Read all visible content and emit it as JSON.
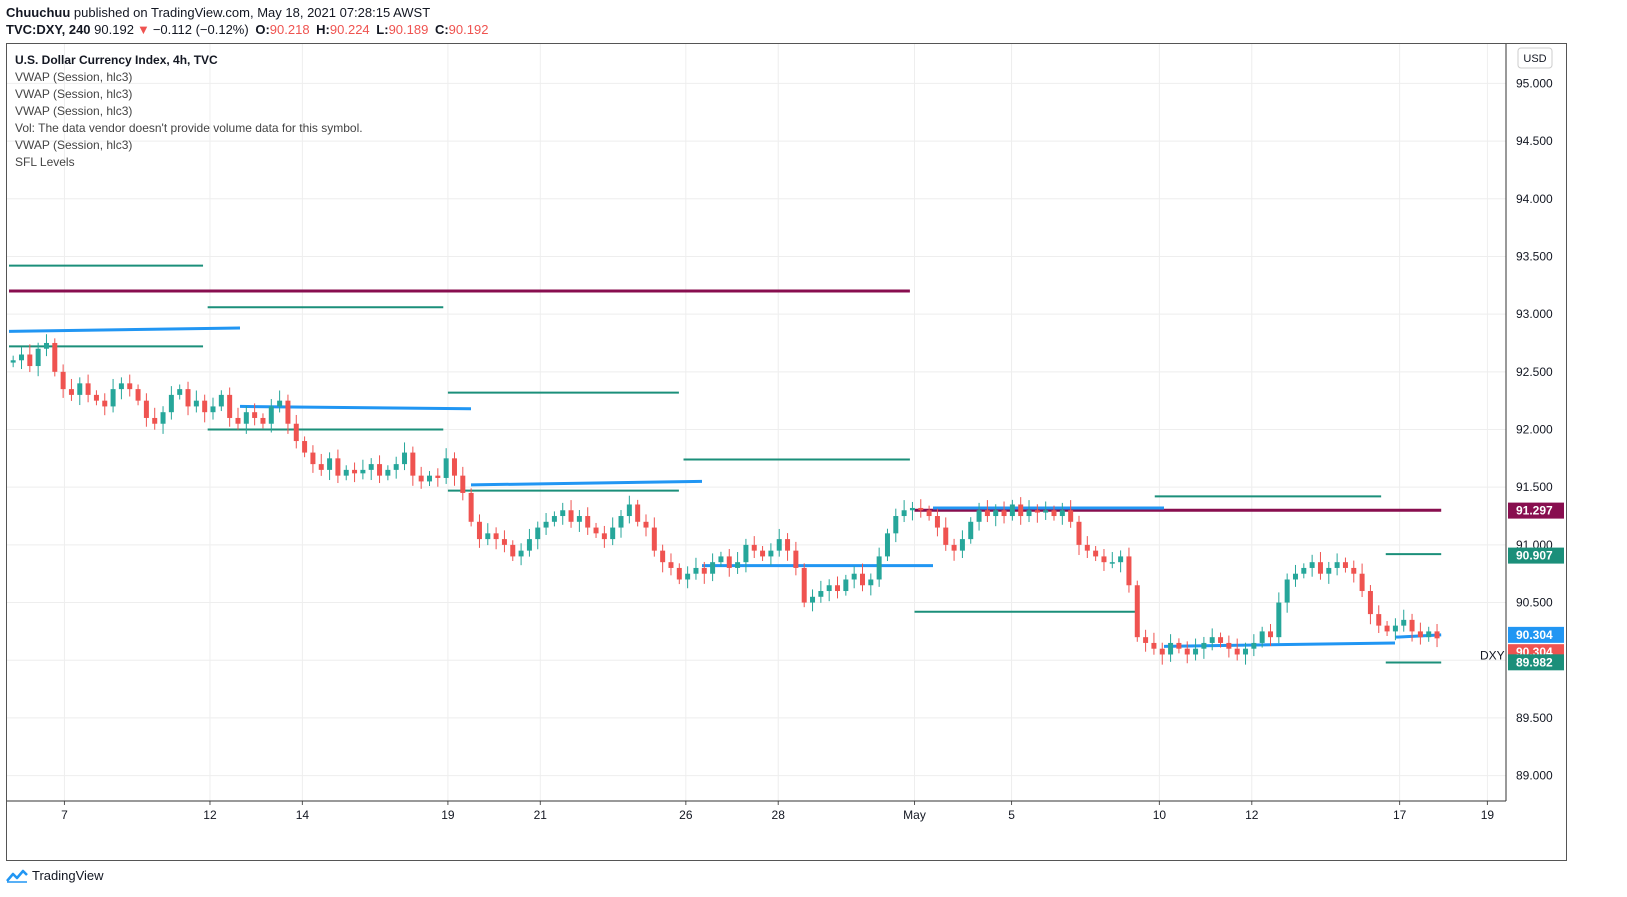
{
  "header": {
    "author": "Chuuchuu",
    "published_text": "published on TradingView.com, May 18, 2021 07:28:15 AWST",
    "symbol": "TVC:DXY, 240",
    "price": "90.192",
    "change": "−0.112 (−0.12%)",
    "o_label": "O:",
    "o_value": "90.218",
    "h_label": "H:",
    "h_value": "90.224",
    "l_label": "L:",
    "l_value": "90.189",
    "c_label": "C:",
    "c_value": "90.192",
    "down_arrow": "▼"
  },
  "legend": {
    "title": "U.S. Dollar Currency Index, 4h, TVC",
    "lines": [
      "VWAP (Session, hlc3)",
      "VWAP (Session, hlc3)",
      "VWAP (Session, hlc3)",
      "Vol: The data vendor doesn't provide volume data for this symbol.",
      "VWAP (Session, hlc3)",
      "SFL Levels"
    ]
  },
  "currency_badge": "USD",
  "symbol_tag": "DXY",
  "footer": {
    "brand": "TradingView",
    "logo_icon": "tradingview-logo-icon"
  },
  "colors": {
    "up": "#26a69a",
    "down": "#ef5350",
    "vwap": "#2196f3",
    "sfl_green": "#1b8f7a",
    "sfl_maroon": "#880e4f",
    "grid": "#eeeeee"
  },
  "chart_data": {
    "type": "candlestick",
    "y_axis": {
      "range": [
        88.78,
        95.35
      ],
      "ticks": [
        "95.000",
        "94.500",
        "94.000",
        "93.500",
        "93.000",
        "92.500",
        "92.000",
        "91.500",
        "91.000",
        "90.500",
        "90.000",
        "89.500",
        "89.000"
      ]
    },
    "x_axis": {
      "ticks": [
        "7",
        "12",
        "14",
        "19",
        "21",
        "26",
        "28",
        "May",
        "5",
        "10",
        "12",
        "17",
        "19"
      ]
    },
    "price_tags": [
      {
        "label": "91.297",
        "value": 91.297,
        "color": "#880e4f"
      },
      {
        "label": "90.907",
        "value": 90.907,
        "color": "#1b8f7a"
      },
      {
        "label": "90.304",
        "value": 90.22,
        "color": "#2196f3"
      },
      {
        "label": "90.304",
        "value": 90.07,
        "color": "#ef5350"
      },
      {
        "label": "89.982",
        "value": 89.982,
        "color": "#1b8f7a"
      }
    ],
    "closes": [
      92.6,
      92.65,
      92.55,
      92.7,
      92.75,
      92.5,
      92.35,
      92.3,
      92.4,
      92.3,
      92.25,
      92.2,
      92.35,
      92.4,
      92.35,
      92.25,
      92.1,
      92.05,
      92.15,
      92.3,
      92.35,
      92.2,
      92.25,
      92.15,
      92.2,
      92.3,
      92.1,
      92.05,
      92.15,
      92.1,
      92.05,
      92.2,
      92.25,
      92.05,
      91.9,
      91.8,
      91.7,
      91.65,
      91.75,
      91.6,
      91.65,
      91.62,
      91.65,
      91.7,
      91.6,
      91.65,
      91.7,
      91.8,
      91.6,
      91.55,
      91.6,
      91.58,
      91.75,
      91.6,
      91.45,
      91.2,
      91.05,
      91.1,
      91.05,
      91.0,
      90.9,
      90.95,
      91.05,
      91.15,
      91.2,
      91.25,
      91.3,
      91.2,
      91.25,
      91.15,
      91.1,
      91.05,
      91.15,
      91.25,
      91.35,
      91.2,
      91.15,
      90.95,
      90.85,
      90.8,
      90.7,
      90.75,
      90.8,
      90.75,
      90.85,
      90.9,
      90.8,
      90.85,
      91.0,
      90.95,
      90.9,
      90.95,
      91.05,
      90.95,
      90.8,
      90.5,
      90.55,
      90.6,
      90.65,
      90.6,
      90.7,
      90.75,
      90.65,
      90.7,
      90.9,
      91.1,
      91.25,
      91.3,
      91.32,
      91.3,
      91.25,
      91.15,
      91.0,
      90.95,
      91.05,
      91.2,
      91.3,
      91.25,
      91.3,
      91.25,
      91.35,
      91.25,
      91.3,
      91.28,
      91.3,
      91.25,
      91.3,
      91.2,
      91.0,
      90.95,
      90.9,
      90.85,
      90.85,
      90.9,
      90.65,
      90.2,
      90.15,
      90.1,
      90.05,
      90.15,
      90.1,
      90.05,
      90.1,
      90.15,
      90.2,
      90.15,
      90.1,
      90.05,
      90.1,
      90.15,
      90.25,
      90.2,
      90.5,
      90.7,
      90.75,
      90.8,
      90.85,
      90.75,
      90.8,
      90.85,
      90.8,
      90.75,
      90.6,
      90.4,
      90.3,
      90.25,
      90.3,
      90.35,
      90.25,
      90.2,
      90.25,
      90.19
    ],
    "vwap_segments": [
      {
        "from_day": 0,
        "to_day": 5,
        "values": [
          92.85,
          92.88
        ]
      },
      {
        "from_day": 5,
        "to_day": 10,
        "values": [
          92.2,
          92.18
        ]
      },
      {
        "from_day": 10,
        "to_day": 15,
        "values": [
          91.52,
          91.55
        ]
      },
      {
        "from_day": 15,
        "to_day": 20,
        "values": [
          90.82,
          90.82
        ]
      },
      {
        "from_day": 20,
        "to_day": 25,
        "values": [
          91.32,
          91.32
        ]
      },
      {
        "from_day": 25,
        "to_day": 30,
        "values": [
          90.12,
          90.15
        ]
      },
      {
        "from_day": 30,
        "to_day": 31,
        "values": [
          90.2,
          90.22
        ]
      }
    ],
    "sfl_levels": [
      {
        "value": 93.42,
        "from_day": 0,
        "to_day": 4.2,
        "color": "green"
      },
      {
        "value": 93.2,
        "from_day": 0,
        "to_day": 19.5,
        "color": "maroon"
      },
      {
        "value": 92.72,
        "from_day": 0,
        "to_day": 4.2,
        "color": "green"
      },
      {
        "value": 93.06,
        "from_day": 4.3,
        "to_day": 9.4,
        "color": "green"
      },
      {
        "value": 92.0,
        "from_day": 4.3,
        "to_day": 9.4,
        "color": "green"
      },
      {
        "value": 92.32,
        "from_day": 9.5,
        "to_day": 14.5,
        "color": "green"
      },
      {
        "value": 91.47,
        "from_day": 9.5,
        "to_day": 14.5,
        "color": "green"
      },
      {
        "value": 91.74,
        "from_day": 14.6,
        "to_day": 19.5,
        "color": "green"
      },
      {
        "value": 90.42,
        "from_day": 19.6,
        "to_day": 24.4,
        "color": "green"
      },
      {
        "value": 91.3,
        "from_day": 19.6,
        "to_day": 31,
        "color": "maroon"
      },
      {
        "value": 91.42,
        "from_day": 24.8,
        "to_day": 29.7,
        "color": "green"
      },
      {
        "value": 90.92,
        "from_day": 29.8,
        "to_day": 31,
        "color": "green"
      },
      {
        "value": 89.98,
        "from_day": 29.8,
        "to_day": 31,
        "color": "green"
      }
    ]
  }
}
